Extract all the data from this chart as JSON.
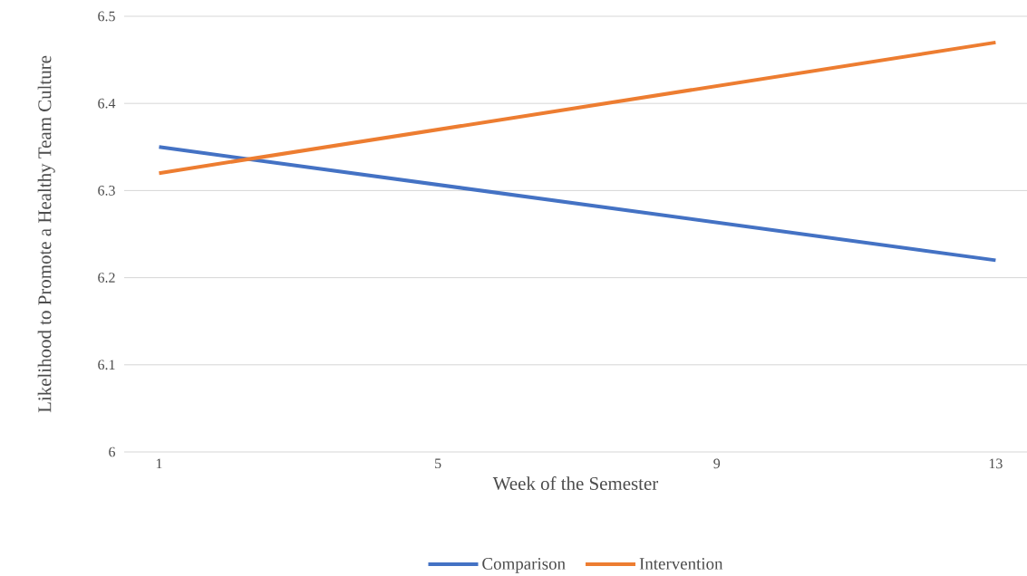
{
  "chart_data": {
    "type": "line",
    "xlabel": "Week of the Semester",
    "ylabel": "Likelihood to Promote a Healthy Team Culture",
    "xlim": [
      0.5,
      13.45
    ],
    "xticks": [
      1,
      5,
      9,
      13
    ],
    "ylim": [
      6,
      6.5
    ],
    "yticks": [
      6,
      6.1,
      6.2,
      6.3,
      6.4,
      6.5
    ],
    "x": [
      1,
      13
    ],
    "grid": "y",
    "legend": "bottom",
    "marker": "none",
    "line_style": "solid",
    "series": [
      {
        "name": "Comparison",
        "color": "#4472c4",
        "values": [
          6.35,
          6.22
        ]
      },
      {
        "name": "Intervention",
        "color": "#ed7d31",
        "values": [
          6.32,
          6.47
        ]
      }
    ]
  }
}
